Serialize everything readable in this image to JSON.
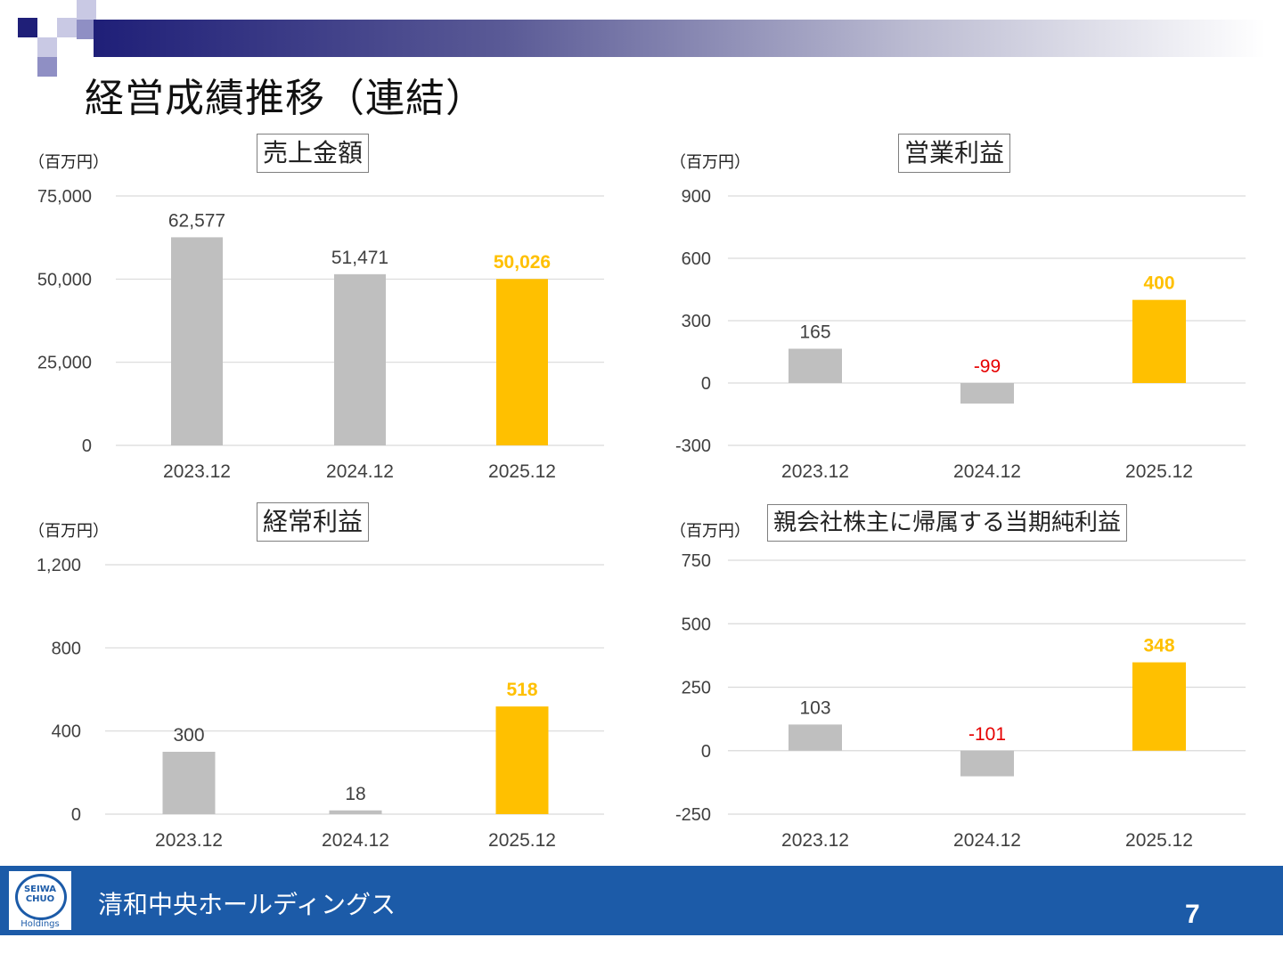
{
  "page": {
    "title": "経営成績推移（連結）",
    "company": "清和中央ホールディングス",
    "page_number": "7",
    "logo": {
      "line1": "SEIWA",
      "line2": "CHUO",
      "line3": "Holdings"
    }
  },
  "colors": {
    "bar_past": "#bfbfbf",
    "bar_forecast": "#ffc000",
    "negative_label": "#e60000",
    "grid": "#d9d9d9",
    "footer": "#1c5ba8"
  },
  "chart_data": [
    {
      "type": "bar",
      "title": "売上金額",
      "unit": "（百万円）",
      "categories": [
        "2023.12",
        "2024.12",
        "2025.12"
      ],
      "values": [
        62577,
        51471,
        50026
      ],
      "value_labels": [
        "62,577",
        "51,471",
        "50,026"
      ],
      "highlight_index": 2,
      "ylim": [
        0,
        75000
      ],
      "yticks": [
        0,
        25000,
        50000,
        75000
      ],
      "ytick_labels": [
        "0",
        "25,000",
        "50,000",
        "75,000"
      ],
      "grid": true
    },
    {
      "type": "bar",
      "title": "営業利益",
      "unit": "（百万円）",
      "categories": [
        "2023.12",
        "2024.12",
        "2025.12"
      ],
      "values": [
        165,
        -99,
        400
      ],
      "value_labels": [
        "165",
        "-99",
        "400"
      ],
      "highlight_index": 2,
      "ylim": [
        -300,
        900
      ],
      "yticks": [
        -300,
        0,
        300,
        600,
        900
      ],
      "ytick_labels": [
        "-300",
        "0",
        "300",
        "600",
        "900"
      ],
      "grid": true
    },
    {
      "type": "bar",
      "title": "経常利益",
      "unit": "（百万円）",
      "categories": [
        "2023.12",
        "2024.12",
        "2025.12"
      ],
      "values": [
        300,
        18,
        518
      ],
      "value_labels": [
        "300",
        "18",
        "518"
      ],
      "highlight_index": 2,
      "ylim": [
        0,
        1200
      ],
      "yticks": [
        0,
        400,
        800,
        1200
      ],
      "ytick_labels": [
        "0",
        "400",
        "800",
        "1,200"
      ],
      "grid": true
    },
    {
      "type": "bar",
      "title": "親会社株主に帰属する当期純利益",
      "unit": "（百万円）",
      "categories": [
        "2023.12",
        "2024.12",
        "2025.12"
      ],
      "values": [
        103,
        -101,
        348
      ],
      "value_labels": [
        "103",
        "-101",
        "348"
      ],
      "highlight_index": 2,
      "ylim": [
        -250,
        750
      ],
      "yticks": [
        -250,
        0,
        250,
        500,
        750
      ],
      "ytick_labels": [
        "-250",
        "0",
        "250",
        "500",
        "750"
      ],
      "grid": true
    }
  ]
}
